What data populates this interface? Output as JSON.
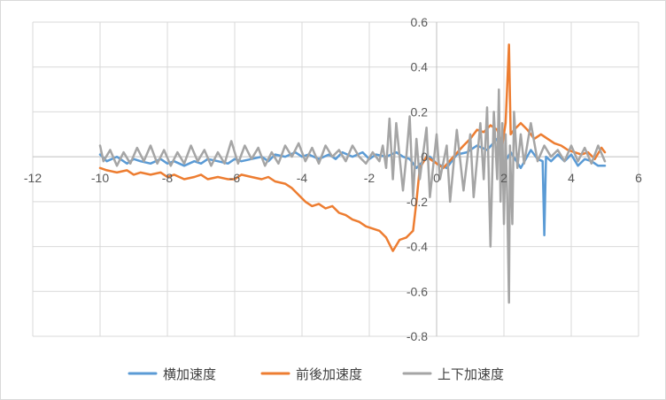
{
  "chart_data": {
    "type": "line",
    "title": "",
    "xlabel": "",
    "ylabel": "",
    "xlim": [
      -12,
      6
    ],
    "ylim": [
      -0.8,
      0.6
    ],
    "x_ticks": [
      -12,
      -10,
      -8,
      -6,
      -4,
      -2,
      0,
      2,
      4,
      6
    ],
    "y_ticks": [
      0.6,
      0.4,
      0.2,
      0,
      -0.2,
      -0.4,
      -0.6,
      -0.8
    ],
    "x_tick_labels": [
      "-12",
      "-10",
      "-8",
      "-6",
      "-4",
      "-2",
      "0",
      "2",
      "4",
      "6"
    ],
    "y_tick_labels": [
      "0.6",
      "0.4",
      "0.2",
      "0",
      "-0.2",
      "-0.4",
      "-0.6",
      "-0.8"
    ],
    "grid": true,
    "legend_position": "bottom",
    "series": [
      {
        "name": "横加速度",
        "color": "#5b9bd5",
        "points": [
          [
            -10,
            0.01
          ],
          [
            -9.8,
            -0.02
          ],
          [
            -9.5,
            0.0
          ],
          [
            -9.2,
            -0.03
          ],
          [
            -9.0,
            -0.01
          ],
          [
            -8.8,
            -0.02
          ],
          [
            -8.5,
            -0.03
          ],
          [
            -8.2,
            -0.01
          ],
          [
            -8.0,
            -0.03
          ],
          [
            -7.8,
            -0.02
          ],
          [
            -7.5,
            -0.04
          ],
          [
            -7.2,
            -0.02
          ],
          [
            -7.0,
            -0.03
          ],
          [
            -6.8,
            -0.01
          ],
          [
            -6.5,
            -0.02
          ],
          [
            -6.2,
            -0.03
          ],
          [
            -6.0,
            -0.01
          ],
          [
            -5.8,
            -0.02
          ],
          [
            -5.5,
            -0.01
          ],
          [
            -5.2,
            0.0
          ],
          [
            -5.0,
            -0.02
          ],
          [
            -4.8,
            0.01
          ],
          [
            -4.5,
            0.0
          ],
          [
            -4.2,
            0.02
          ],
          [
            -4.0,
            0.0
          ],
          [
            -3.8,
            0.01
          ],
          [
            -3.5,
            -0.01
          ],
          [
            -3.2,
            0.01
          ],
          [
            -3.0,
            -0.01
          ],
          [
            -2.8,
            0.02
          ],
          [
            -2.5,
            0.0
          ],
          [
            -2.2,
            0.02
          ],
          [
            -2.0,
            -0.01
          ],
          [
            -1.8,
            0.01
          ],
          [
            -1.5,
            0.0
          ],
          [
            -1.2,
            0.02
          ],
          [
            -1.0,
            0.0
          ],
          [
            -0.8,
            -0.01
          ],
          [
            -0.6,
            -0.05
          ],
          [
            -0.4,
            -0.02
          ],
          [
            -0.2,
            0.0
          ],
          [
            0.0,
            -0.03
          ],
          [
            0.3,
            -0.05
          ],
          [
            0.6,
            0.01
          ],
          [
            0.9,
            0.02
          ],
          [
            1.2,
            0.05
          ],
          [
            1.5,
            0.03
          ],
          [
            1.8,
            0.08
          ],
          [
            2.0,
            -0.03
          ],
          [
            2.2,
            0.02
          ],
          [
            2.5,
            -0.05
          ],
          [
            2.8,
            0.03
          ],
          [
            3.0,
            -0.01
          ],
          [
            3.15,
            -0.02
          ],
          [
            3.2,
            -0.35
          ],
          [
            3.25,
            0.0
          ],
          [
            3.4,
            -0.02
          ],
          [
            3.6,
            0.01
          ],
          [
            3.8,
            -0.02
          ],
          [
            4.0,
            0.01
          ],
          [
            4.2,
            -0.04
          ],
          [
            4.4,
            -0.01
          ],
          [
            4.6,
            -0.02
          ],
          [
            4.8,
            -0.04
          ],
          [
            5.0,
            -0.04
          ]
        ]
      },
      {
        "name": "前後加速度",
        "color": "#ed7d31",
        "points": [
          [
            -10,
            -0.05
          ],
          [
            -9.8,
            -0.06
          ],
          [
            -9.5,
            -0.07
          ],
          [
            -9.2,
            -0.06
          ],
          [
            -9.0,
            -0.08
          ],
          [
            -8.8,
            -0.07
          ],
          [
            -8.5,
            -0.08
          ],
          [
            -8.2,
            -0.07
          ],
          [
            -8.0,
            -0.09
          ],
          [
            -7.8,
            -0.08
          ],
          [
            -7.5,
            -0.1
          ],
          [
            -7.2,
            -0.09
          ],
          [
            -7.0,
            -0.08
          ],
          [
            -6.8,
            -0.1
          ],
          [
            -6.5,
            -0.09
          ],
          [
            -6.2,
            -0.1
          ],
          [
            -6.0,
            -0.1
          ],
          [
            -5.8,
            -0.08
          ],
          [
            -5.5,
            -0.09
          ],
          [
            -5.2,
            -0.1
          ],
          [
            -5.0,
            -0.09
          ],
          [
            -4.8,
            -0.11
          ],
          [
            -4.5,
            -0.12
          ],
          [
            -4.3,
            -0.14
          ],
          [
            -4.1,
            -0.17
          ],
          [
            -3.9,
            -0.2
          ],
          [
            -3.7,
            -0.22
          ],
          [
            -3.5,
            -0.21
          ],
          [
            -3.3,
            -0.23
          ],
          [
            -3.1,
            -0.22
          ],
          [
            -2.9,
            -0.25
          ],
          [
            -2.7,
            -0.26
          ],
          [
            -2.5,
            -0.28
          ],
          [
            -2.3,
            -0.29
          ],
          [
            -2.1,
            -0.31
          ],
          [
            -1.9,
            -0.32
          ],
          [
            -1.7,
            -0.33
          ],
          [
            -1.5,
            -0.36
          ],
          [
            -1.3,
            -0.42
          ],
          [
            -1.1,
            -0.37
          ],
          [
            -0.9,
            -0.36
          ],
          [
            -0.7,
            -0.33
          ],
          [
            -0.6,
            -0.2
          ],
          [
            -0.5,
            -0.05
          ],
          [
            -0.3,
            0.0
          ],
          [
            -0.1,
            -0.02
          ],
          [
            0.2,
            -0.05
          ],
          [
            0.5,
            0.0
          ],
          [
            0.8,
            0.05
          ],
          [
            1.0,
            0.08
          ],
          [
            1.2,
            0.12
          ],
          [
            1.4,
            0.11
          ],
          [
            1.6,
            0.14
          ],
          [
            1.8,
            0.12
          ],
          [
            1.95,
            0.05
          ],
          [
            2.05,
            0.15
          ],
          [
            2.15,
            0.5
          ],
          [
            2.2,
            0.1
          ],
          [
            2.3,
            0.12
          ],
          [
            2.5,
            0.15
          ],
          [
            2.7,
            0.12
          ],
          [
            2.9,
            0.08
          ],
          [
            3.1,
            0.1
          ],
          [
            3.3,
            0.08
          ],
          [
            3.5,
            0.06
          ],
          [
            3.7,
            0.05
          ],
          [
            3.9,
            0.03
          ],
          [
            4.1,
            0.02
          ],
          [
            4.3,
            0.01
          ],
          [
            4.5,
            0.02
          ],
          [
            4.7,
            -0.01
          ],
          [
            4.9,
            0.04
          ],
          [
            5.0,
            0.02
          ]
        ]
      },
      {
        "name": "上下加速度",
        "color": "#a5a5a5",
        "points": [
          [
            -10,
            0.05
          ],
          [
            -9.9,
            -0.02
          ],
          [
            -9.7,
            0.03
          ],
          [
            -9.5,
            -0.04
          ],
          [
            -9.3,
            0.02
          ],
          [
            -9.1,
            -0.03
          ],
          [
            -8.9,
            0.04
          ],
          [
            -8.7,
            -0.02
          ],
          [
            -8.5,
            0.05
          ],
          [
            -8.3,
            -0.03
          ],
          [
            -8.1,
            0.03
          ],
          [
            -7.9,
            -0.04
          ],
          [
            -7.7,
            0.02
          ],
          [
            -7.5,
            -0.03
          ],
          [
            -7.3,
            0.05
          ],
          [
            -7.1,
            -0.02
          ],
          [
            -6.9,
            0.03
          ],
          [
            -6.7,
            -0.04
          ],
          [
            -6.5,
            0.02
          ],
          [
            -6.3,
            -0.03
          ],
          [
            -6.1,
            0.07
          ],
          [
            -5.9,
            -0.03
          ],
          [
            -5.7,
            0.05
          ],
          [
            -5.5,
            -0.01
          ],
          [
            -5.3,
            0.04
          ],
          [
            -5.1,
            -0.04
          ],
          [
            -4.9,
            0.02
          ],
          [
            -4.7,
            -0.03
          ],
          [
            -4.5,
            0.05
          ],
          [
            -4.3,
            0.0
          ],
          [
            -4.1,
            0.06
          ],
          [
            -3.9,
            -0.02
          ],
          [
            -3.7,
            0.04
          ],
          [
            -3.5,
            -0.03
          ],
          [
            -3.3,
            0.05
          ],
          [
            -3.1,
            0.0
          ],
          [
            -2.9,
            0.03
          ],
          [
            -2.7,
            -0.02
          ],
          [
            -2.5,
            0.05
          ],
          [
            -2.3,
            0.0
          ],
          [
            -2.1,
            -0.03
          ],
          [
            -1.9,
            0.02
          ],
          [
            -1.7,
            -0.02
          ],
          [
            -1.6,
            0.05
          ],
          [
            -1.5,
            -0.05
          ],
          [
            -1.4,
            0.17
          ],
          [
            -1.3,
            -0.1
          ],
          [
            -1.2,
            0.15
          ],
          [
            -1.0,
            -0.15
          ],
          [
            -0.9,
            0.0
          ],
          [
            -0.8,
            0.18
          ],
          [
            -0.7,
            -0.18
          ],
          [
            -0.6,
            0.08
          ],
          [
            -0.5,
            -0.1
          ],
          [
            -0.3,
            0.13
          ],
          [
            -0.2,
            -0.18
          ],
          [
            0.0,
            0.1
          ],
          [
            0.1,
            -0.1
          ],
          [
            0.3,
            0.05
          ],
          [
            0.4,
            -0.2
          ],
          [
            0.6,
            0.12
          ],
          [
            0.8,
            -0.15
          ],
          [
            1.0,
            0.1
          ],
          [
            1.1,
            -0.18
          ],
          [
            1.3,
            0.15
          ],
          [
            1.4,
            -0.1
          ],
          [
            1.5,
            0.22
          ],
          [
            1.6,
            -0.4
          ],
          [
            1.7,
            0.2
          ],
          [
            1.8,
            -0.1
          ],
          [
            1.85,
            0.3
          ],
          [
            1.9,
            -0.2
          ],
          [
            1.95,
            0.15
          ],
          [
            2.0,
            -0.3
          ],
          [
            2.05,
            0.1
          ],
          [
            2.1,
            -0.2
          ],
          [
            2.15,
            -0.65
          ],
          [
            2.18,
            0.05
          ],
          [
            2.25,
            -0.3
          ],
          [
            2.3,
            0.2
          ],
          [
            2.4,
            -0.05
          ],
          [
            2.5,
            0.1
          ],
          [
            2.6,
            -0.03
          ],
          [
            2.8,
            0.15
          ],
          [
            3.0,
            -0.02
          ],
          [
            3.2,
            0.05
          ],
          [
            3.4,
            0.0
          ],
          [
            3.6,
            0.03
          ],
          [
            3.8,
            -0.02
          ],
          [
            4.0,
            0.05
          ],
          [
            4.2,
            -0.02
          ],
          [
            4.4,
            0.04
          ],
          [
            4.6,
            -0.03
          ],
          [
            4.8,
            0.05
          ],
          [
            5.0,
            -0.02
          ]
        ]
      }
    ]
  }
}
